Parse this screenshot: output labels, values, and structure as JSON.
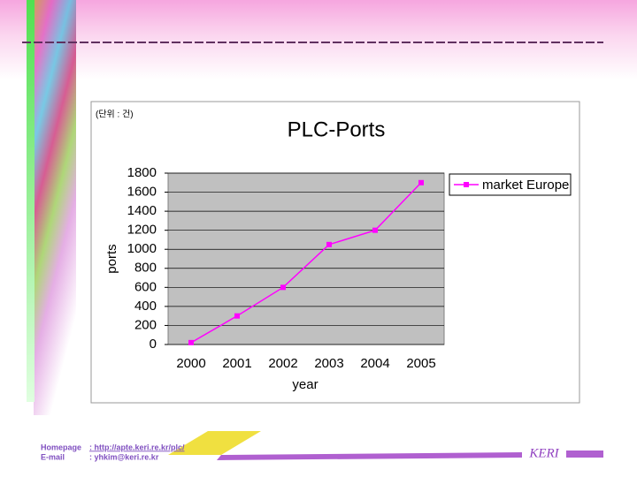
{
  "note": "(단위 : 건)",
  "chart_data": {
    "type": "line",
    "title": "PLC-Ports",
    "x_label": "year",
    "y_label": "ports",
    "categories": [
      "2000",
      "2001",
      "2002",
      "2003",
      "2004",
      "2005"
    ],
    "series": [
      {
        "name": "market Europe",
        "color": "#ff00ff",
        "values": [
          20,
          300,
          600,
          1050,
          1200,
          1700
        ]
      }
    ],
    "ylim": [
      0,
      1800
    ],
    "yticks": [
      0,
      200,
      400,
      600,
      800,
      1000,
      1200,
      1400,
      1600,
      1800
    ],
    "grid": true,
    "legend": "right"
  },
  "footer": {
    "homepage_label": "Homepage",
    "homepage": ": http://apte.keri.re.kr/plc/",
    "email_label": "E-mail",
    "email": ": yhkim@keri.re.kr",
    "logo": "KERI"
  }
}
